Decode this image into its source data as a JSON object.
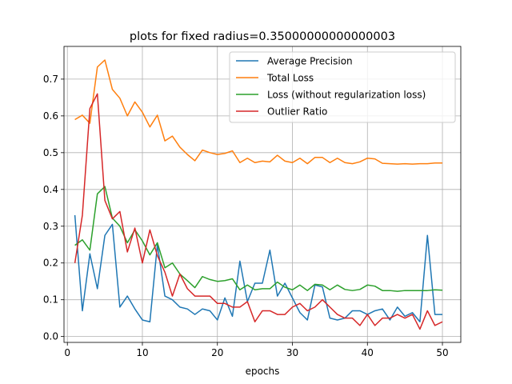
{
  "chart_data": {
    "type": "line",
    "title": "plots for fixed radius=0.35000000000000003",
    "xlabel": "epochs",
    "ylabel": "",
    "xlim": [
      -0.45,
      52.45
    ],
    "ylim": [
      -0.016,
      0.789
    ],
    "xticks": [
      0,
      10,
      20,
      30,
      40,
      50
    ],
    "yticks": [
      0.0,
      0.1,
      0.2,
      0.3,
      0.4,
      0.5,
      0.6,
      0.7
    ],
    "ytick_labels": [
      "0.0",
      "0.1",
      "0.2",
      "0.3",
      "0.4",
      "0.5",
      "0.6",
      "0.7"
    ],
    "grid": true,
    "legend_position": "upper right",
    "x": [
      1,
      2,
      3,
      4,
      5,
      6,
      7,
      8,
      9,
      10,
      11,
      12,
      13,
      14,
      15,
      16,
      17,
      18,
      19,
      20,
      21,
      22,
      23,
      24,
      25,
      26,
      27,
      28,
      29,
      30,
      31,
      32,
      33,
      34,
      35,
      36,
      37,
      38,
      39,
      40,
      41,
      42,
      43,
      44,
      45,
      46,
      47,
      48,
      49,
      50
    ],
    "series": [
      {
        "name": "Average Precision",
        "color": "#1f77b4",
        "values": [
          0.33,
          0.07,
          0.225,
          0.13,
          0.275,
          0.305,
          0.08,
          0.11,
          0.075,
          0.045,
          0.04,
          0.25,
          0.11,
          0.1,
          0.08,
          0.075,
          0.06,
          0.075,
          0.07,
          0.045,
          0.105,
          0.055,
          0.205,
          0.095,
          0.145,
          0.145,
          0.235,
          0.11,
          0.145,
          0.105,
          0.065,
          0.045,
          0.14,
          0.135,
          0.05,
          0.045,
          0.05,
          0.07,
          0.07,
          0.06,
          0.07,
          0.075,
          0.045,
          0.08,
          0.055,
          0.065,
          0.04,
          0.275,
          0.06,
          0.06
        ]
      },
      {
        "name": "Total Loss",
        "color": "#ff7f0e",
        "values": [
          0.59,
          0.602,
          0.58,
          0.733,
          0.752,
          0.672,
          0.648,
          0.6,
          0.638,
          0.61,
          0.57,
          0.602,
          0.532,
          0.545,
          0.515,
          0.495,
          0.478,
          0.507,
          0.5,
          0.495,
          0.498,
          0.505,
          0.473,
          0.485,
          0.473,
          0.477,
          0.475,
          0.493,
          0.477,
          0.473,
          0.485,
          0.47,
          0.487,
          0.487,
          0.473,
          0.485,
          0.473,
          0.47,
          0.475,
          0.485,
          0.483,
          0.471,
          0.47,
          0.469,
          0.47,
          0.469,
          0.47,
          0.47,
          0.472,
          0.472
        ]
      },
      {
        "name": "Loss (without regularization loss)",
        "color": "#2ca02c",
        "values": [
          0.248,
          0.263,
          0.235,
          0.388,
          0.408,
          0.322,
          0.3,
          0.255,
          0.29,
          0.26,
          0.222,
          0.255,
          0.187,
          0.2,
          0.17,
          0.152,
          0.133,
          0.163,
          0.155,
          0.15,
          0.152,
          0.157,
          0.127,
          0.14,
          0.127,
          0.13,
          0.13,
          0.148,
          0.134,
          0.127,
          0.14,
          0.125,
          0.142,
          0.14,
          0.127,
          0.14,
          0.128,
          0.125,
          0.128,
          0.14,
          0.137,
          0.125,
          0.125,
          0.123,
          0.125,
          0.125,
          0.125,
          0.125,
          0.127,
          0.126
        ]
      },
      {
        "name": "Outlier Ratio",
        "color": "#d62728",
        "values": [
          0.2,
          0.33,
          0.62,
          0.66,
          0.37,
          0.32,
          0.34,
          0.23,
          0.295,
          0.2,
          0.29,
          0.22,
          0.175,
          0.11,
          0.17,
          0.13,
          0.11,
          0.11,
          0.11,
          0.09,
          0.09,
          0.08,
          0.08,
          0.095,
          0.04,
          0.07,
          0.07,
          0.06,
          0.06,
          0.08,
          0.09,
          0.07,
          0.08,
          0.1,
          0.08,
          0.06,
          0.05,
          0.05,
          0.03,
          0.06,
          0.03,
          0.05,
          0.05,
          0.06,
          0.05,
          0.06,
          0.02,
          0.07,
          0.03,
          0.04
        ]
      }
    ]
  }
}
